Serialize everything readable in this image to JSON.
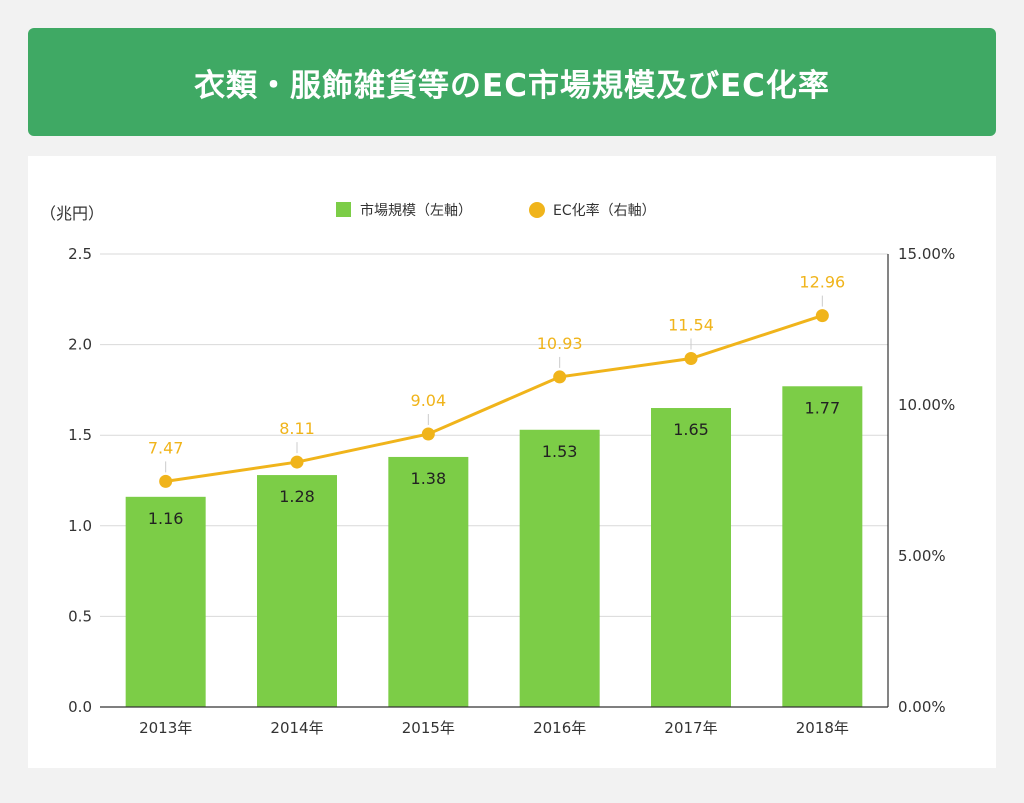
{
  "title": "衣類・服飾雑貨等のEC市場規模及びEC化率",
  "colors": {
    "banner": "#3fa964",
    "bar": "#7ccd47",
    "line": "#f0b41b",
    "grid": "#d9d9d9"
  },
  "chart_data": {
    "type": "bar",
    "categories": [
      "2013年",
      "2014年",
      "2015年",
      "2016年",
      "2017年",
      "2018年"
    ],
    "series": [
      {
        "name": "市場規模（左軸）",
        "type": "bar",
        "axis": "left",
        "values": [
          1.16,
          1.28,
          1.38,
          1.53,
          1.65,
          1.77
        ]
      },
      {
        "name": "EC化率（右軸）",
        "type": "line",
        "axis": "right",
        "values": [
          7.47,
          8.11,
          9.04,
          10.93,
          11.54,
          12.96
        ]
      }
    ],
    "ylabel": "（兆円）",
    "ylim": [
      0,
      2.5
    ],
    "yticks": [
      "0.0",
      "0.5",
      "1.0",
      "1.5",
      "2.0",
      "2.5"
    ],
    "y2lim": [
      0,
      15
    ],
    "y2ticks": [
      "0.00%",
      "5.00%",
      "10.00%",
      "15.00%"
    ],
    "grid": true,
    "legend": "top-center"
  }
}
